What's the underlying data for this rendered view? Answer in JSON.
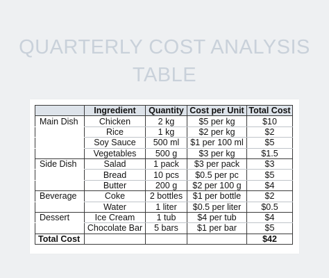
{
  "title": {
    "line1": "QUARTERLY COST ANALYSIS",
    "line2": "TABLE"
  },
  "table": {
    "headers": [
      "",
      "Ingredient",
      "Quantity",
      "Cost per Unit",
      "Total Cost"
    ],
    "rows": [
      {
        "category": "Main Dish",
        "ingredient": "Chicken",
        "quantity": "2 kg",
        "cost_per_unit": "$5 per kg",
        "total": "$10"
      },
      {
        "category": "",
        "ingredient": "Rice",
        "quantity": "1 kg",
        "cost_per_unit": "$2 per kg",
        "total": "$2"
      },
      {
        "category": "",
        "ingredient": "Soy Sauce",
        "quantity": "500 ml",
        "cost_per_unit": "$1 per 100 ml",
        "total": "$5"
      },
      {
        "category": "",
        "ingredient": "Vegetables",
        "quantity": "500 g",
        "cost_per_unit": "$3 per kg",
        "total": "$1.5"
      },
      {
        "category": "Side Dish",
        "ingredient": "Salad",
        "quantity": "1 pack",
        "cost_per_unit": "$3 per pack",
        "total": "$3"
      },
      {
        "category": "",
        "ingredient": "Bread",
        "quantity": "10 pcs",
        "cost_per_unit": "$0.5 per pc",
        "total": "$5"
      },
      {
        "category": "",
        "ingredient": "Butter",
        "quantity": "200 g",
        "cost_per_unit": "$2 per 100 g",
        "total": "$4"
      },
      {
        "category": "Beverage",
        "ingredient": "Coke",
        "quantity": "2 bottles",
        "cost_per_unit": "$1 per bottle",
        "total": "$2"
      },
      {
        "category": "",
        "ingredient": "Water",
        "quantity": "1 liter",
        "cost_per_unit": "$0.5 per liter",
        "total": "$0.5"
      },
      {
        "category": "Dessert",
        "ingredient": "Ice Cream",
        "quantity": "1 tub",
        "cost_per_unit": "$4 per tub",
        "total": "$4"
      },
      {
        "category": "",
        "ingredient": "Chocolate Bar",
        "quantity": "5 bars",
        "cost_per_unit": "$1 per bar",
        "total": "$5"
      }
    ],
    "footer": {
      "label": "Total Cost",
      "total": "$42"
    }
  }
}
